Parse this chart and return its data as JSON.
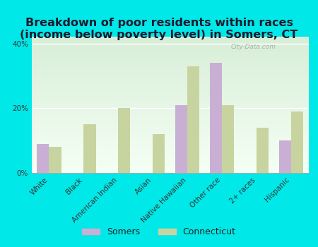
{
  "title": "Breakdown of poor residents within races\n(income below poverty level) in Somers, CT",
  "categories": [
    "White",
    "Black",
    "American Indian",
    "Asian",
    "Native Hawaiian",
    "Other race",
    "2+ races",
    "Hispanic"
  ],
  "somers": [
    9,
    0,
    0,
    0,
    21,
    34,
    0,
    10
  ],
  "connecticut": [
    8,
    15,
    20,
    12,
    33,
    21,
    14,
    19
  ],
  "somers_color": "#c9afd4",
  "connecticut_color": "#c8d4a0",
  "background_color": "#00e8e8",
  "grad_top": "#d8eed8",
  "grad_bottom": "#f5fff5",
  "ylim": [
    0,
    42
  ],
  "yticks": [
    0,
    20,
    40
  ],
  "ytick_labels": [
    "0%",
    "20%",
    "40%"
  ],
  "bar_width": 0.35,
  "title_fontsize": 11.5,
  "tick_fontsize": 7.5,
  "legend_fontsize": 9,
  "watermark": "City-Data.com",
  "title_color": "#1a1a2e"
}
